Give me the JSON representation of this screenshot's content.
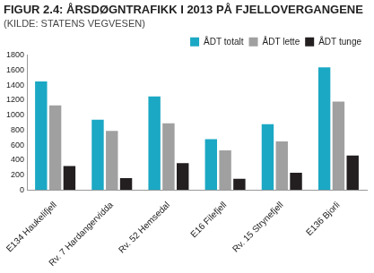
{
  "chart_data": {
    "type": "bar",
    "title": "FIGUR 2.4: ÅRSDØGNTRAFIKK I 2013 PÅ FJELLOVERGANGENE",
    "subtitle": "(KILDE: STATENS VEGVESEN)",
    "categories": [
      "E134 Haukelifjell",
      "Rv. 7 Hardangervidda",
      "Rv. 52 Hemsedal",
      "E16 Filefjell",
      "Rv. 15 Strynefjell",
      "E136 Bjorli"
    ],
    "series": [
      {
        "name": "ÅDT totalt",
        "color": "#1ba8c4",
        "values": [
          1450,
          940,
          1250,
          680,
          880,
          1640
        ]
      },
      {
        "name": "ÅDT lette",
        "color": "#a0a0a0",
        "values": [
          1130,
          790,
          890,
          530,
          650,
          1180
        ]
      },
      {
        "name": "ÅDT tunge",
        "color": "#231f20",
        "values": [
          320,
          160,
          360,
          150,
          230,
          460
        ]
      }
    ],
    "ylim": [
      0,
      1800
    ],
    "yticks": [
      0,
      200,
      400,
      600,
      800,
      1000,
      1200,
      1400,
      1600,
      1800
    ],
    "grid": false,
    "legend": "upper right"
  }
}
